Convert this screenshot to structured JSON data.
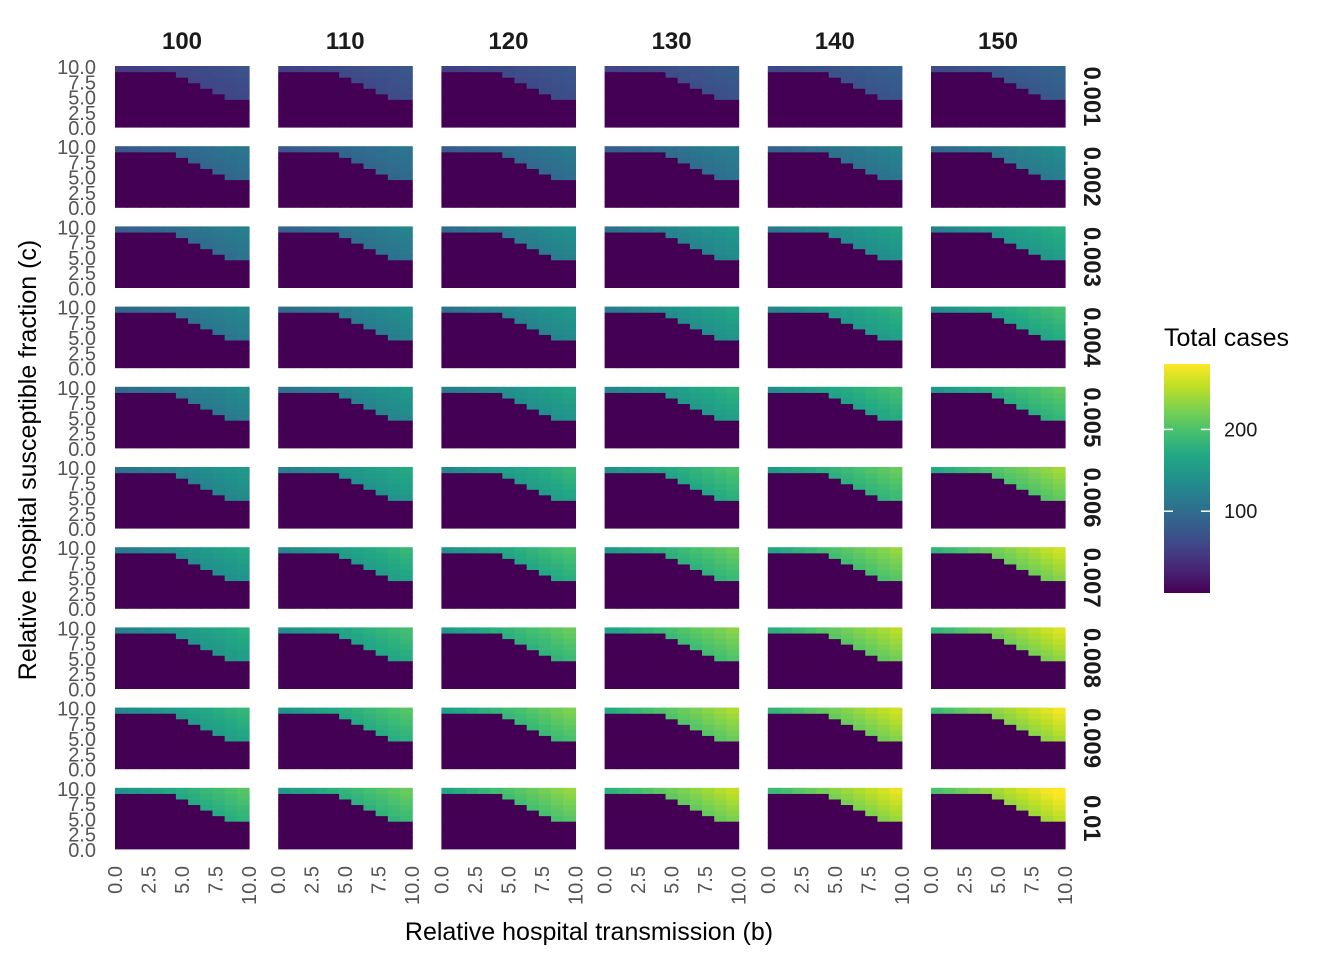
{
  "chart_data": {
    "type": "heatmap",
    "facet_columns_label": "",
    "col_strips": [
      "100",
      "110",
      "120",
      "130",
      "140",
      "150"
    ],
    "row_strips": [
      "0.001",
      "0.002",
      "0.003",
      "0.004",
      "0.005",
      "0.006",
      "0.007",
      "0.008",
      "0.009",
      "0.01"
    ],
    "x_label": "Relative hospital transmission (b)",
    "y_label": "Relative hospital susceptible fraction (c)",
    "x_ticks": [
      "0.0",
      "2.5",
      "5.0",
      "7.5",
      "10.0"
    ],
    "y_ticks": [
      "0.0",
      "2.5",
      "5.0",
      "7.5",
      "10.0"
    ],
    "xlim": [
      0,
      10
    ],
    "ylim": [
      0,
      10
    ],
    "grid_values": {
      "b": [
        0,
        1,
        2,
        3,
        4,
        5,
        6,
        7,
        8,
        9,
        10
      ],
      "c": [
        0,
        1,
        2,
        3,
        4,
        5,
        6,
        7,
        8,
        9,
        10
      ]
    },
    "outbreak_threshold_c_by_b": [
      10,
      10,
      10,
      10,
      10,
      9,
      8,
      7,
      6,
      5,
      5
    ],
    "approx_max_total_cases_by_panel": [
      [
        70,
        75,
        75,
        80,
        85,
        90
      ],
      [
        110,
        110,
        115,
        120,
        125,
        135
      ],
      [
        120,
        125,
        140,
        150,
        160,
        175
      ],
      [
        130,
        140,
        150,
        165,
        180,
        195
      ],
      [
        135,
        150,
        165,
        180,
        195,
        210
      ],
      [
        150,
        170,
        185,
        200,
        215,
        240
      ],
      [
        165,
        185,
        200,
        215,
        235,
        260
      ],
      [
        175,
        195,
        215,
        230,
        250,
        265
      ],
      [
        185,
        205,
        225,
        245,
        260,
        275
      ],
      [
        205,
        215,
        235,
        255,
        270,
        285
      ]
    ],
    "legend": {
      "title": "Total cases",
      "breaks": [
        "100",
        "200"
      ],
      "min": 0,
      "max": 280,
      "position": "right",
      "colormap": "viridis"
    },
    "colors": {
      "low": "#440154",
      "mid": "#21908C",
      "high": "#FDE725"
    }
  }
}
